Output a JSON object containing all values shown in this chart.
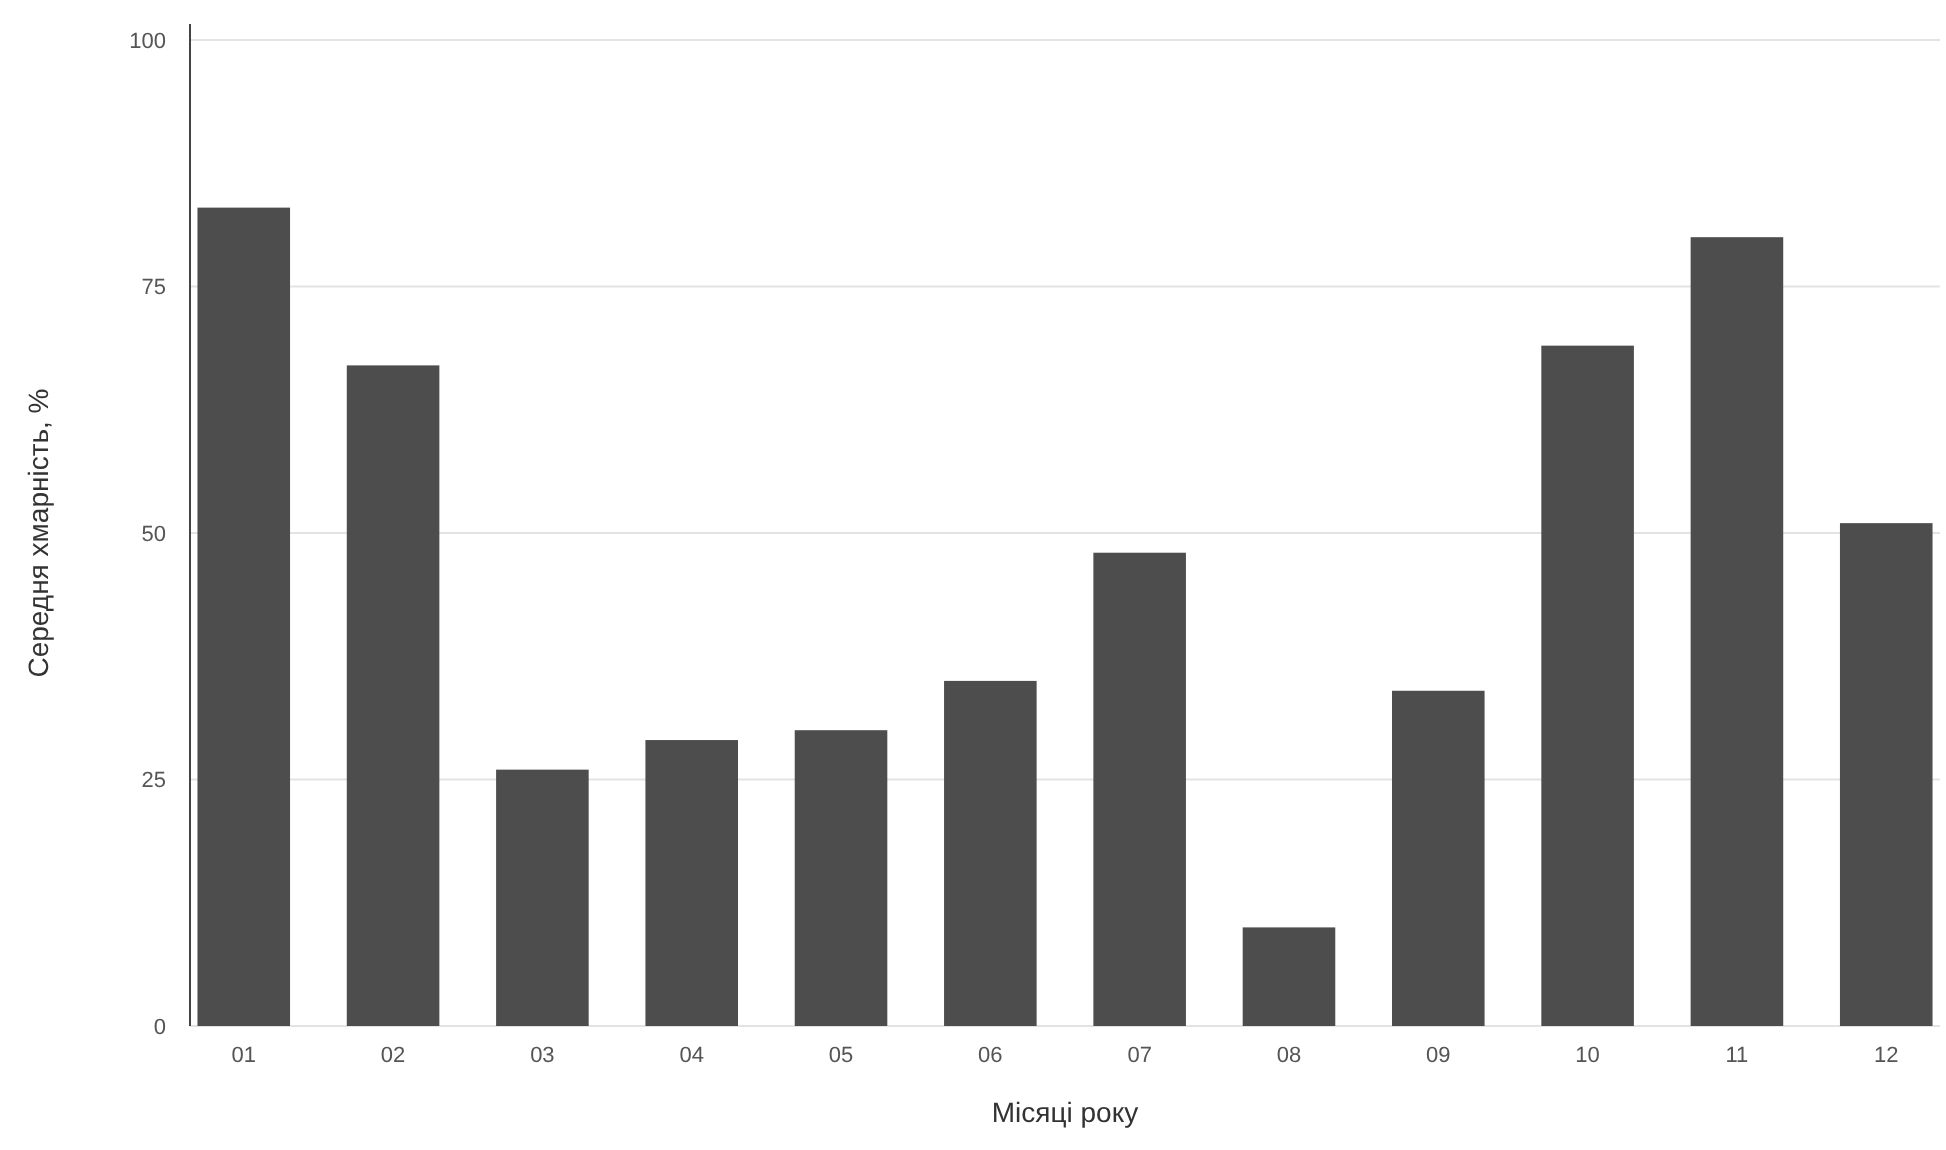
{
  "chart_data": {
    "type": "bar",
    "xlabel": "Місяці року",
    "ylabel": "Середня хмарність, %",
    "categories": [
      "01",
      "02",
      "03",
      "04",
      "05",
      "06",
      "07",
      "08",
      "09",
      "10",
      "11",
      "12"
    ],
    "values": [
      83,
      67,
      26,
      29,
      30,
      35,
      48,
      10,
      34,
      69,
      80,
      51
    ],
    "color": "#4d4d4d",
    "ylim": [
      0,
      100
    ],
    "yticks": [
      0,
      25,
      50,
      75,
      100
    ],
    "grid": "y"
  }
}
